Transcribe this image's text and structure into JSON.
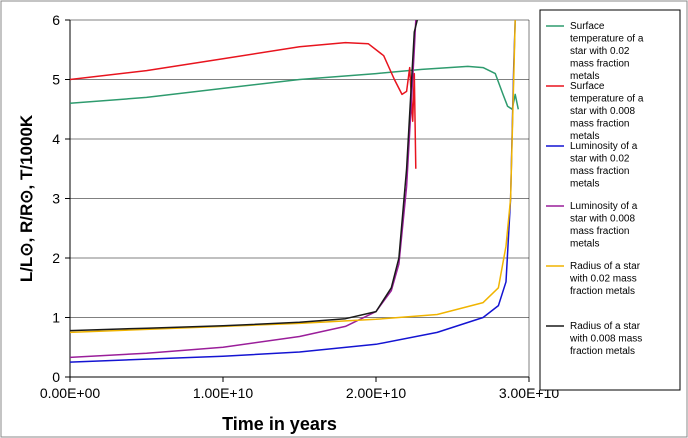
{
  "chart_data": {
    "type": "line",
    "title": "",
    "xlabel": "Time in years",
    "ylabel": "L/L⊙, R/R⊙, T/1000K",
    "xlim": [
      0,
      30000000000
    ],
    "ylim": [
      0,
      6
    ],
    "xticks": [
      "0.00E+00",
      "1.00E+10",
      "2.00E+10",
      "3.00E+10"
    ],
    "yticks": [
      "0",
      "1",
      "2",
      "3",
      "4",
      "5",
      "6"
    ],
    "grid": "horizontal",
    "legend_placement": "right",
    "series": [
      {
        "name": "Surface temperature of a star with 0.02 mass fraction metals",
        "color": "#2e9b6e",
        "x": [
          0,
          5000000000.0,
          10000000000.0,
          15000000000.0,
          20000000000.0,
          23000000000.0,
          26000000000.0,
          27000000000.0,
          27800000000.0,
          28300000000.0,
          28600000000.0,
          28900000000.0,
          29100000000.0,
          29300000000.0
        ],
        "y": [
          4.6,
          4.7,
          4.85,
          5.0,
          5.1,
          5.17,
          5.22,
          5.2,
          5.1,
          4.75,
          4.55,
          4.5,
          4.75,
          4.5
        ]
      },
      {
        "name": "Surface temperature of a star with 0.008 mass fraction metals",
        "color": "#e8141e",
        "x": [
          0,
          5000000000.0,
          10000000000.0,
          15000000000.0,
          18000000000.0,
          19500000000.0,
          20500000000.0,
          21200000000.0,
          21700000000.0,
          22000000000.0,
          22200000000.0,
          22400000000.0,
          22500000000.0,
          22600000000.0
        ],
        "y": [
          5.0,
          5.15,
          5.35,
          5.55,
          5.62,
          5.6,
          5.4,
          5.0,
          4.75,
          4.8,
          5.2,
          4.3,
          5.1,
          3.5
        ]
      },
      {
        "name": "Luminosity of a star with 0.02 mass fraction metals",
        "color": "#1414d2",
        "x": [
          0,
          5000000000.0,
          10000000000.0,
          15000000000.0,
          20000000000.0,
          24000000000.0,
          27000000000.0,
          28000000000.0,
          28500000000.0,
          28800000000.0,
          29000000000.0,
          29100000000.0
        ],
        "y": [
          0.25,
          0.3,
          0.35,
          0.42,
          0.55,
          0.75,
          1.0,
          1.2,
          1.6,
          3.0,
          5.2,
          6.0
        ]
      },
      {
        "name": "Luminosity of a star with 0.008 mass fraction metals",
        "color": "#9a1e9a",
        "x": [
          0,
          5000000000.0,
          10000000000.0,
          15000000000.0,
          18000000000.0,
          20000000000.0,
          21000000000.0,
          21500000000.0,
          22000000000.0,
          22500000000.0,
          22600000000.0
        ],
        "y": [
          0.33,
          0.4,
          0.5,
          0.68,
          0.85,
          1.1,
          1.45,
          1.9,
          3.2,
          5.5,
          6.0
        ]
      },
      {
        "name": "Radius of a star with 0.02 mass fraction metals",
        "color": "#f0b400",
        "x": [
          0,
          5000000000.0,
          10000000000.0,
          15000000000.0,
          20000000000.0,
          24000000000.0,
          27000000000.0,
          28000000000.0,
          28500000000.0,
          28800000000.0,
          29000000000.0,
          29100000000.0
        ],
        "y": [
          0.75,
          0.8,
          0.85,
          0.9,
          0.97,
          1.05,
          1.25,
          1.5,
          2.2,
          3.0,
          5.0,
          6.0
        ]
      },
      {
        "name": "Radius of a star with 0.008 mass fraction metals",
        "color": "#1a1a1a",
        "x": [
          0,
          5000000000.0,
          10000000000.0,
          15000000000.0,
          18000000000.0,
          20000000000.0,
          21000000000.0,
          21500000000.0,
          22000000000.0,
          22500000000.0,
          22700000000.0
        ],
        "y": [
          0.78,
          0.82,
          0.86,
          0.92,
          0.98,
          1.1,
          1.5,
          2.0,
          3.5,
          5.8,
          6.0
        ]
      }
    ]
  }
}
